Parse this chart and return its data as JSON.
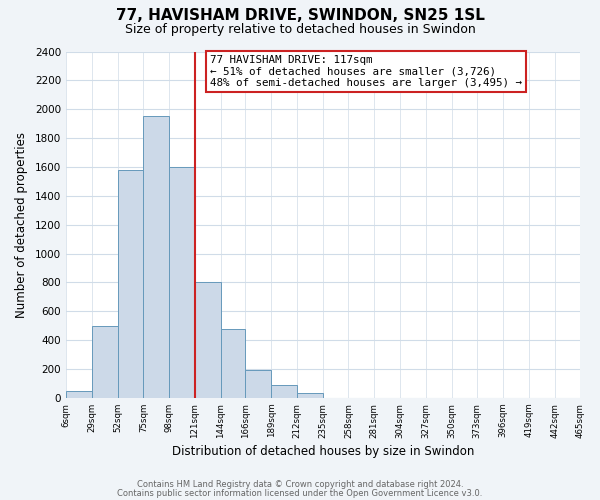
{
  "title": "77, HAVISHAM DRIVE, SWINDON, SN25 1SL",
  "subtitle": "Size of property relative to detached houses in Swindon",
  "xlabel": "Distribution of detached houses by size in Swindon",
  "ylabel": "Number of detached properties",
  "bar_edges": [
    6,
    29,
    52,
    75,
    98,
    121,
    144,
    166,
    189,
    212,
    235,
    258,
    281,
    304,
    327,
    350,
    373,
    396,
    419,
    442,
    465
  ],
  "bar_heights": [
    50,
    500,
    1580,
    1950,
    1600,
    800,
    480,
    190,
    90,
    35,
    0,
    0,
    0,
    0,
    0,
    0,
    0,
    0,
    0,
    0
  ],
  "bar_color": "#ccd9e8",
  "bar_edge_color": "#6699bb",
  "vline_x": 121,
  "vline_color": "#cc2222",
  "annotation_title": "77 HAVISHAM DRIVE: 117sqm",
  "annotation_line1": "← 51% of detached houses are smaller (3,726)",
  "annotation_line2": "48% of semi-detached houses are larger (3,495) →",
  "annotation_box_color": "white",
  "annotation_box_edge_color": "#cc2222",
  "ylim": [
    0,
    2400
  ],
  "yticks": [
    0,
    200,
    400,
    600,
    800,
    1000,
    1200,
    1400,
    1600,
    1800,
    2000,
    2200,
    2400
  ],
  "tick_labels": [
    "6sqm",
    "29sqm",
    "52sqm",
    "75sqm",
    "98sqm",
    "121sqm",
    "144sqm",
    "166sqm",
    "189sqm",
    "212sqm",
    "235sqm",
    "258sqm",
    "281sqm",
    "304sqm",
    "327sqm",
    "350sqm",
    "373sqm",
    "396sqm",
    "419sqm",
    "442sqm",
    "465sqm"
  ],
  "footer1": "Contains HM Land Registry data © Crown copyright and database right 2024.",
  "footer2": "Contains public sector information licensed under the Open Government Licence v3.0.",
  "bg_color": "#f0f4f8",
  "plot_bg_color": "#ffffff",
  "grid_color": "#d0dce8"
}
